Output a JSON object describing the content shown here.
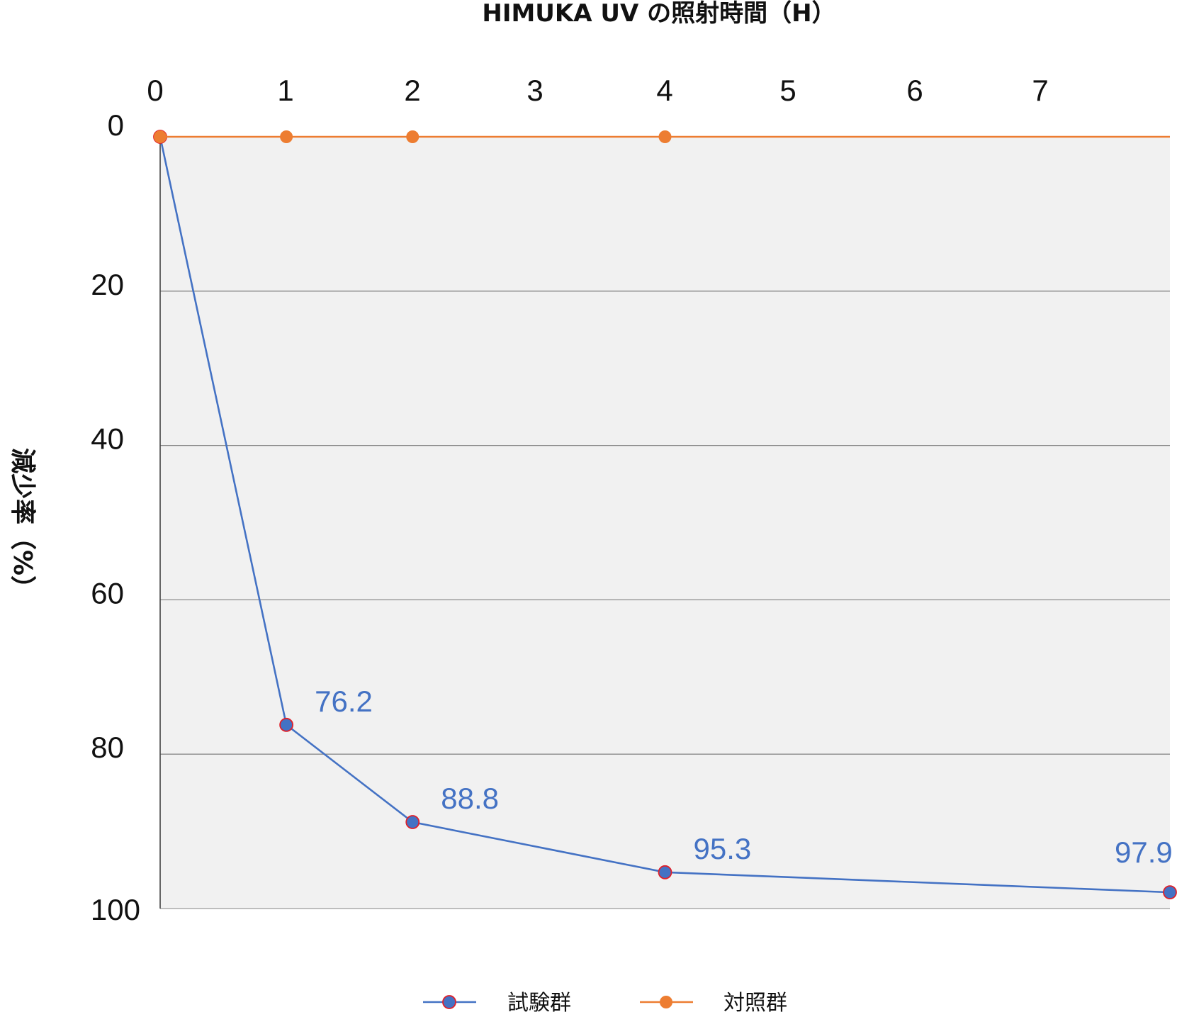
{
  "chart_data": {
    "type": "line",
    "title": "HIMUKA UV の照射時間（H）",
    "xlabel": "HIMUKA UV の照射時間（H）",
    "ylabel": "減少率（%）",
    "x_ticks": [
      "0",
      "1",
      "2",
      "3",
      "4",
      "5",
      "6",
      "7"
    ],
    "y_ticks": [
      "0",
      "20",
      "40",
      "60",
      "80",
      "100"
    ],
    "xlim": [
      0,
      8
    ],
    "ylim": [
      0,
      100
    ],
    "y_inverted": true,
    "x_axis_position": "top",
    "grid": "horizontal",
    "legend_position": "bottom",
    "plot_background": "#f1f1f1",
    "series": [
      {
        "name": "試験群",
        "color": "#4472c4",
        "marker_edge": "#e0202a",
        "x": [
          0,
          1,
          2,
          4,
          8
        ],
        "values": [
          0,
          76.2,
          88.8,
          95.3,
          97.9
        ],
        "labels": [
          "",
          "76.2",
          "88.8",
          "95.3",
          "97.9"
        ]
      },
      {
        "name": "対照群",
        "color": "#ed7d31",
        "x": [
          0,
          1,
          2,
          4,
          8
        ],
        "values": [
          0,
          0,
          0,
          0,
          0
        ],
        "marker_x": [
          0,
          1,
          2,
          4
        ]
      }
    ]
  }
}
